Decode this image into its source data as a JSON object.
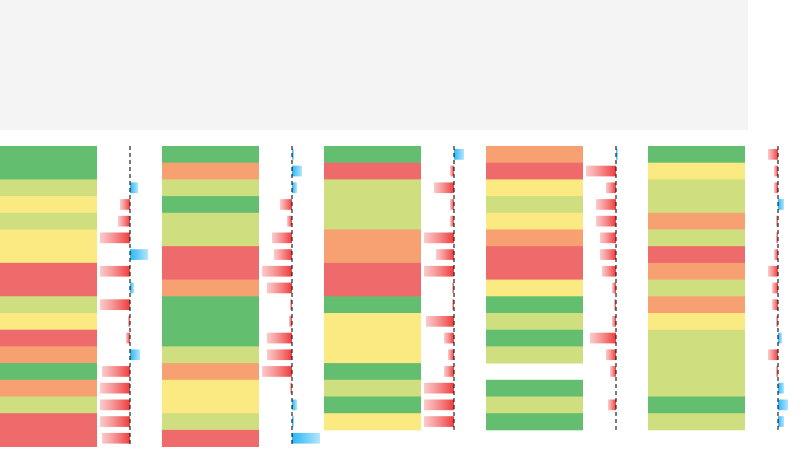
{
  "panels": [
    {
      "levels": [
        1,
        1,
        2,
        3,
        2,
        3,
        3,
        5,
        5,
        2,
        3,
        5,
        4,
        1,
        4,
        2,
        5,
        5
      ],
      "bars": [
        0,
        0,
        8,
        -10,
        -12,
        -30,
        18,
        -30,
        4,
        -30,
        -2,
        -4,
        10,
        -28,
        -30,
        -30,
        -30,
        -28
      ]
    },
    {
      "levels": [
        1,
        4,
        2,
        1,
        2,
        2,
        5,
        5,
        4,
        1,
        1,
        1,
        2,
        4,
        3,
        3,
        2,
        5
      ],
      "bars": [
        2,
        10,
        5,
        -12,
        -5,
        -20,
        -18,
        -30,
        -25,
        -2,
        -3,
        -25,
        -25,
        -30,
        -2,
        5,
        2,
        28
      ]
    },
    {
      "levels": [
        1,
        5,
        2,
        2,
        2,
        4,
        4,
        5,
        5,
        1,
        3,
        3,
        3,
        1,
        2,
        1,
        3
      ],
      "bars": [
        10,
        -4,
        -20,
        -4,
        -4,
        -30,
        -18,
        -30,
        -2,
        -2,
        -28,
        -10,
        -6,
        -10,
        -30,
        -30,
        -30
      ]
    },
    {
      "levels": [
        4,
        5,
        3,
        2,
        3,
        4,
        5,
        5,
        3,
        1,
        2,
        1,
        2,
        null,
        1,
        2,
        1
      ],
      "bars": [
        2,
        -30,
        -10,
        -20,
        -20,
        -16,
        -16,
        -14,
        -4,
        -2,
        -4,
        -26,
        -10,
        -6,
        0,
        -8,
        0
      ]
    },
    {
      "levels": [
        1,
        3,
        2,
        2,
        4,
        2,
        5,
        4,
        2,
        4,
        3,
        2,
        2,
        2,
        2,
        1,
        2
      ],
      "bars": [
        -10,
        -4,
        -4,
        6,
        -2,
        -2,
        -4,
        -10,
        -6,
        -6,
        -2,
        4,
        -10,
        -2,
        6,
        10,
        6
      ]
    }
  ]
}
